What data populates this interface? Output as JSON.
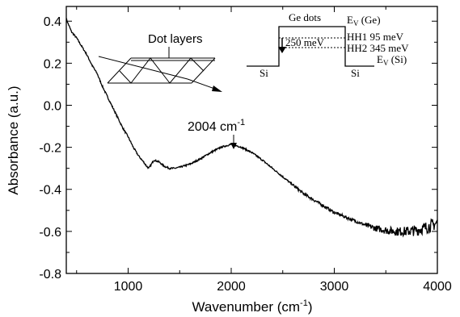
{
  "chart_data": {
    "type": "line",
    "xlabel": "Wavenumber (cm",
    "xlabel_sup": "-1",
    "xlabel_tail": ")",
    "ylabel": "Absorbance (a.u.)",
    "xlim": [
      400,
      4000
    ],
    "ylim": [
      -0.8,
      0.47
    ],
    "x_ticks": [
      1000,
      2000,
      3000,
      4000
    ],
    "y_ticks": [
      0.4,
      0.2,
      0.0,
      -0.2,
      -0.4,
      -0.6,
      -0.8
    ],
    "y_tick_labels": [
      "0.4",
      "0.2",
      "0.0",
      "-0.2",
      "-0.4",
      "-0.6",
      "-0.8"
    ],
    "grid": false,
    "series": [
      {
        "x": [
          400,
          450,
          500,
          550,
          600,
          650,
          700,
          750,
          800,
          850,
          900,
          950,
          1000,
          1050,
          1100,
          1150,
          1180,
          1200,
          1220,
          1250,
          1300,
          1350,
          1400,
          1450,
          1500,
          1600,
          1700,
          1800,
          1900,
          2004,
          2100,
          2200,
          2300,
          2400,
          2500,
          2600,
          2700,
          2800,
          2900,
          3000,
          3100,
          3200,
          3300,
          3400,
          3500,
          3600,
          3700,
          3800,
          3900,
          4000
        ],
        "y": [
          0.41,
          0.35,
          0.32,
          0.28,
          0.24,
          0.19,
          0.15,
          0.09,
          0.04,
          -0.01,
          -0.06,
          -0.11,
          -0.15,
          -0.2,
          -0.24,
          -0.27,
          -0.29,
          -0.3,
          -0.285,
          -0.26,
          -0.27,
          -0.29,
          -0.3,
          -0.3,
          -0.295,
          -0.28,
          -0.255,
          -0.225,
          -0.2,
          -0.185,
          -0.2,
          -0.225,
          -0.26,
          -0.3,
          -0.34,
          -0.38,
          -0.42,
          -0.45,
          -0.48,
          -0.51,
          -0.53,
          -0.55,
          -0.57,
          -0.585,
          -0.595,
          -0.6,
          -0.6,
          -0.595,
          -0.58,
          -0.56
        ]
      }
    ],
    "annotations": {
      "peak_label": "2004 cm",
      "peak_label_sup": "-1",
      "peak_x": 2004,
      "peak_y": -0.185
    }
  },
  "inset_dots": {
    "label": "Dot layers"
  },
  "inset_band": {
    "ge_dots": "Ge dots",
    "ev_ge_main": "E",
    "ev_ge_sub": "V",
    "ev_ge_tail": " (Ge)",
    "hh1": "HH1 95 meV",
    "hh2": "HH2 345 meV",
    "transition": "250 meV",
    "ev_si_main": "E",
    "ev_si_sub": "V",
    "ev_si_tail": " (Si)",
    "si_left": "Si",
    "si_right": "Si"
  }
}
